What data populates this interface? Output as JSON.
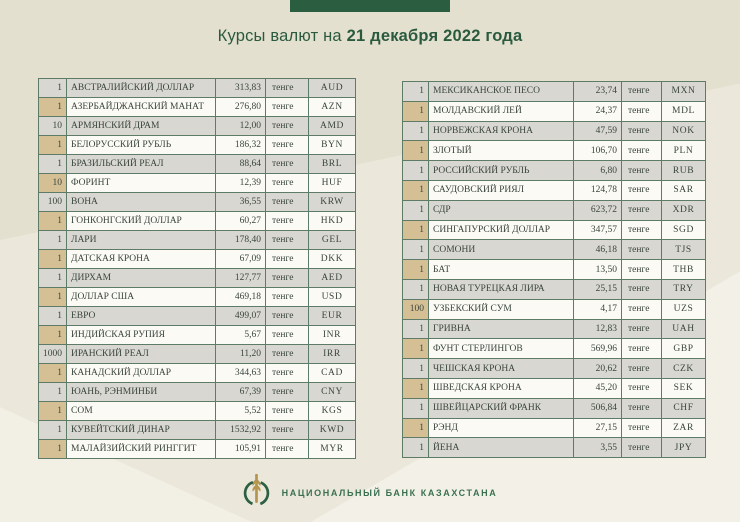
{
  "title": {
    "prefix": "Курсы валют на ",
    "date": "21 декабря 2022 года"
  },
  "footer": {
    "bank_name": "НАЦИОНАЛЬНЫЙ БАНК КАЗАХСТАНА",
    "logo": "national-bank-kazakhstan-emblem"
  },
  "colors": {
    "accent_green": "#2b5e41",
    "title_green": "#2a5a3d",
    "footer_green": "#3a7050",
    "row_gray": "#d9d7d2",
    "row_white": "#fbfaf5",
    "qty_highlight_tan": "#d5c095",
    "border_green": "#5d7b66",
    "emblem_gold": "#b5954d",
    "background_beige": "#ebe8db"
  },
  "tables": [
    {
      "rows": [
        {
          "qty": "1",
          "name": "АВСТРАЛИЙСКИЙ ДОЛЛАР",
          "rate": "313,83",
          "unit": "тенге",
          "code": "AUD"
        },
        {
          "qty": "1",
          "name": "АЗЕРБАЙДЖАНСКИЙ МАНАТ",
          "rate": "276,80",
          "unit": "тенге",
          "code": "AZN"
        },
        {
          "qty": "10",
          "name": "АРМЯНСКИЙ ДРАМ",
          "rate": "12,00",
          "unit": "тенге",
          "code": "AMD"
        },
        {
          "qty": "1",
          "name": "БЕЛОРУССКИЙ РУБЛЬ",
          "rate": "186,32",
          "unit": "тенге",
          "code": "BYN"
        },
        {
          "qty": "1",
          "name": "БРАЗИЛЬСКИЙ РЕАЛ",
          "rate": "88,64",
          "unit": "тенге",
          "code": "BRL"
        },
        {
          "qty": "10",
          "name": "ФОРИНТ",
          "rate": "12,39",
          "unit": "тенге",
          "code": "HUF"
        },
        {
          "qty": "100",
          "name": "ВОНА",
          "rate": "36,55",
          "unit": "тенге",
          "code": "KRW"
        },
        {
          "qty": "1",
          "name": "ГОНКОНГСКИЙ ДОЛЛАР",
          "rate": "60,27",
          "unit": "тенге",
          "code": "HKD"
        },
        {
          "qty": "1",
          "name": "ЛАРИ",
          "rate": "178,40",
          "unit": "тенге",
          "code": "GEL"
        },
        {
          "qty": "1",
          "name": "ДАТСКАЯ КРОНА",
          "rate": "67,09",
          "unit": "тенге",
          "code": "DKK"
        },
        {
          "qty": "1",
          "name": "ДИРХАМ",
          "rate": "127,77",
          "unit": "тенге",
          "code": "AED"
        },
        {
          "qty": "1",
          "name": "ДОЛЛАР США",
          "rate": "469,18",
          "unit": "тенге",
          "code": "USD"
        },
        {
          "qty": "1",
          "name": "ЕВРО",
          "rate": "499,07",
          "unit": "тенге",
          "code": "EUR"
        },
        {
          "qty": "1",
          "name": "ИНДИЙСКАЯ РУПИЯ",
          "rate": "5,67",
          "unit": "тенге",
          "code": "INR"
        },
        {
          "qty": "1000",
          "name": "ИРАНСКИЙ РЕАЛ",
          "rate": "11,20",
          "unit": "тенге",
          "code": "IRR"
        },
        {
          "qty": "1",
          "name": "КАНАДСКИЙ ДОЛЛАР",
          "rate": "344,63",
          "unit": "тенге",
          "code": "CAD"
        },
        {
          "qty": "1",
          "name": "ЮАНЬ, РЭНМИНБИ",
          "rate": "67,39",
          "unit": "тенге",
          "code": "CNY"
        },
        {
          "qty": "1",
          "name": "СОМ",
          "rate": "5,52",
          "unit": "тенге",
          "code": "KGS"
        },
        {
          "qty": "1",
          "name": "КУВЕЙТСКИЙ ДИНАР",
          "rate": "1532,92",
          "unit": "тенге",
          "code": "KWD"
        },
        {
          "qty": "1",
          "name": "МАЛАЙЗИЙСКИЙ РИНГГИТ",
          "rate": "105,91",
          "unit": "тенге",
          "code": "MYR"
        }
      ]
    },
    {
      "rows": [
        {
          "qty": "1",
          "name": "МЕКСИКАНСКОЕ ПЕСО",
          "rate": "23,74",
          "unit": "тенге",
          "code": "MXN"
        },
        {
          "qty": "1",
          "name": "МОЛДАВСКИЙ ЛЕЙ",
          "rate": "24,37",
          "unit": "тенге",
          "code": "MDL"
        },
        {
          "qty": "1",
          "name": "НОРВЕЖСКАЯ КРОНА",
          "rate": "47,59",
          "unit": "тенге",
          "code": "NOK"
        },
        {
          "qty": "1",
          "name": "ЗЛОТЫЙ",
          "rate": "106,70",
          "unit": "тенге",
          "code": "PLN"
        },
        {
          "qty": "1",
          "name": "РОССИЙСКИЙ РУБЛЬ",
          "rate": "6,80",
          "unit": "тенге",
          "code": "RUB"
        },
        {
          "qty": "1",
          "name": "САУДОВСКИЙ РИЯЛ",
          "rate": "124,78",
          "unit": "тенге",
          "code": "SAR"
        },
        {
          "qty": "1",
          "name": "СДР",
          "rate": "623,72",
          "unit": "тенге",
          "code": "XDR"
        },
        {
          "qty": "1",
          "name": "СИНГАПУРСКИЙ ДОЛЛАР",
          "rate": "347,57",
          "unit": "тенге",
          "code": "SGD"
        },
        {
          "qty": "1",
          "name": "СОМОНИ",
          "rate": "46,18",
          "unit": "тенге",
          "code": "TJS"
        },
        {
          "qty": "1",
          "name": "БАТ",
          "rate": "13,50",
          "unit": "тенге",
          "code": "THB"
        },
        {
          "qty": "1",
          "name": "НОВАЯ ТУРЕЦКАЯ ЛИРА",
          "rate": "25,15",
          "unit": "тенге",
          "code": "TRY"
        },
        {
          "qty": "100",
          "name": "УЗБЕКСКИЙ СУМ",
          "rate": "4,17",
          "unit": "тенге",
          "code": "UZS"
        },
        {
          "qty": "1",
          "name": "ГРИВНА",
          "rate": "12,83",
          "unit": "тенге",
          "code": "UAH"
        },
        {
          "qty": "1",
          "name": "ФУНТ СТЕРЛИНГОВ",
          "rate": "569,96",
          "unit": "тенге",
          "code": "GBP"
        },
        {
          "qty": "1",
          "name": "ЧЕШСКАЯ КРОНА",
          "rate": "20,62",
          "unit": "тенге",
          "code": "CZK"
        },
        {
          "qty": "1",
          "name": "ШВЕДСКАЯ КРОНА",
          "rate": "45,20",
          "unit": "тенге",
          "code": "SEK"
        },
        {
          "qty": "1",
          "name": "ШВЕЙЦАРСКИЙ ФРАНК",
          "rate": "506,84",
          "unit": "тенге",
          "code": "CHF"
        },
        {
          "qty": "1",
          "name": "РЭНД",
          "rate": "27,15",
          "unit": "тенге",
          "code": "ZAR"
        },
        {
          "qty": "1",
          "name": "ЙЕНА",
          "rate": "3,55",
          "unit": "тенге",
          "code": "JPY"
        }
      ]
    }
  ]
}
